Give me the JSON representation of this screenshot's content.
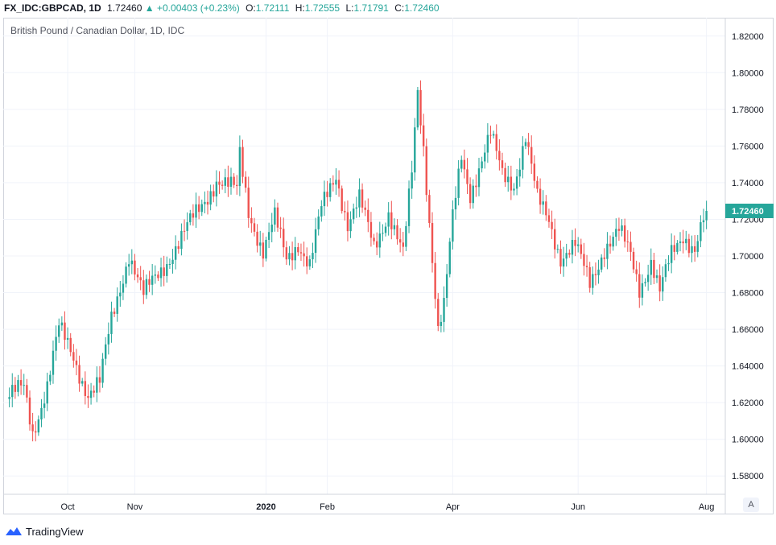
{
  "header": {
    "symbol": "FX_IDC:GBPCAD, 1D",
    "last": "1.72460",
    "change": "+0.00403 (+0.23%)",
    "open_label": "O:",
    "open": "1.72111",
    "high_label": "H:",
    "high": "1.72555",
    "low_label": "L:",
    "low": "1.71791",
    "close_label": "C:",
    "close": "1.72460"
  },
  "legend_title": "British Pound / Canadian Dollar, 1D, IDC",
  "auto_button": "A",
  "brand": "TradingView",
  "colors": {
    "up": "#26a69a",
    "down": "#ef5350",
    "grid": "#f0f3fa",
    "axis_text": "#131722",
    "price_tag": "#26a69a"
  },
  "chart_data": {
    "type": "candlestick",
    "y_axis": {
      "min": 1.57,
      "max": 1.83,
      "ticks": [
        "1.58000",
        "1.60000",
        "1.62000",
        "1.64000",
        "1.66000",
        "1.68000",
        "1.70000",
        "1.72000",
        "1.74000",
        "1.76000",
        "1.78000",
        "1.80000",
        "1.82000"
      ]
    },
    "x_axis_labels": [
      {
        "label": "Oct",
        "index": 21
      },
      {
        "label": "Nov",
        "index": 44
      },
      {
        "label": "2020",
        "index": 89
      },
      {
        "label": "Feb",
        "index": 110
      },
      {
        "label": "Apr",
        "index": 153
      },
      {
        "label": "Jun",
        "index": 196
      },
      {
        "label": "Aug",
        "index": 240
      }
    ],
    "last_price": "1.72460",
    "candle_count": 240,
    "ohlc_key_points": [
      [
        0,
        1.622
      ],
      [
        6,
        1.628
      ],
      [
        9,
        1.604
      ],
      [
        14,
        1.63
      ],
      [
        18,
        1.66
      ],
      [
        23,
        1.645
      ],
      [
        28,
        1.625
      ],
      [
        32,
        1.63
      ],
      [
        36,
        1.665
      ],
      [
        42,
        1.702
      ],
      [
        47,
        1.678
      ],
      [
        54,
        1.695
      ],
      [
        60,
        1.71
      ],
      [
        66,
        1.725
      ],
      [
        72,
        1.742
      ],
      [
        79,
        1.735
      ],
      [
        80,
        1.755
      ],
      [
        83,
        1.725
      ],
      [
        88,
        1.703
      ],
      [
        92,
        1.72
      ],
      [
        96,
        1.698
      ],
      [
        100,
        1.708
      ],
      [
        104,
        1.695
      ],
      [
        108,
        1.725
      ],
      [
        113,
        1.745
      ],
      [
        117,
        1.718
      ],
      [
        121,
        1.73
      ],
      [
        126,
        1.705
      ],
      [
        131,
        1.725
      ],
      [
        136,
        1.7
      ],
      [
        139,
        1.745
      ],
      [
        141,
        1.79
      ],
      [
        143,
        1.76
      ],
      [
        145,
        1.72
      ],
      [
        148,
        1.66
      ],
      [
        150,
        1.672
      ],
      [
        153,
        1.72
      ],
      [
        156,
        1.755
      ],
      [
        159,
        1.735
      ],
      [
        162,
        1.748
      ],
      [
        166,
        1.765
      ],
      [
        170,
        1.745
      ],
      [
        174,
        1.74
      ],
      [
        178,
        1.765
      ],
      [
        182,
        1.73
      ],
      [
        186,
        1.72
      ],
      [
        190,
        1.7
      ],
      [
        195,
        1.705
      ],
      [
        200,
        1.685
      ],
      [
        205,
        1.705
      ],
      [
        210,
        1.713
      ],
      [
        214,
        1.7
      ],
      [
        217,
        1.683
      ],
      [
        221,
        1.698
      ],
      [
        224,
        1.68
      ],
      [
        228,
        1.7
      ],
      [
        232,
        1.712
      ],
      [
        236,
        1.705
      ],
      [
        239,
        1.72
      ],
      [
        240,
        1.7246
      ]
    ]
  }
}
